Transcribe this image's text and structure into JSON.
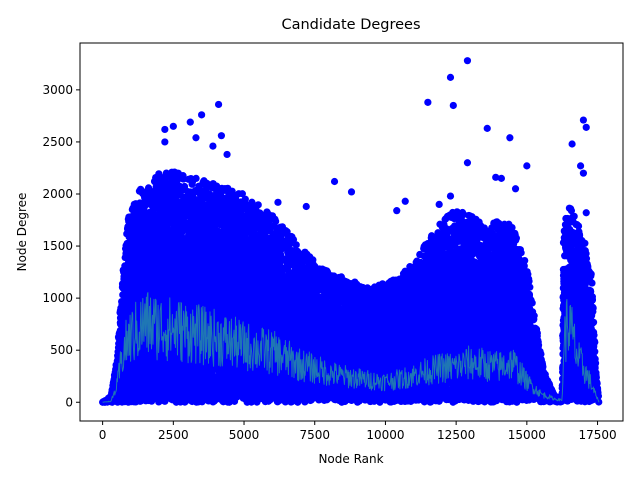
{
  "chart_data": {
    "type": "scatter",
    "title": "Candidate Degrees",
    "xlabel": "Node Rank",
    "ylabel": "Node Degree",
    "xlim": [
      -800,
      18400
    ],
    "ylim": [
      -180,
      3450
    ],
    "xticks": [
      0,
      2500,
      5000,
      7500,
      10000,
      12500,
      15000,
      17500
    ],
    "xtick_labels": [
      "0",
      "2500",
      "5000",
      "7500",
      "10000",
      "12500",
      "15000",
      "17500"
    ],
    "yticks": [
      0,
      500,
      1000,
      1500,
      2000,
      2500,
      3000
    ],
    "ytick_labels": [
      "0",
      "500",
      "1000",
      "1500",
      "2000",
      "2500",
      "3000"
    ],
    "grid": false,
    "legend": "none",
    "colors": {
      "points": "#0000ff",
      "line": "#1f77b4"
    },
    "series": [
      {
        "type": "scatter",
        "marker": "circle",
        "envelope": [
          [
            0,
            0
          ],
          [
            300,
            60
          ],
          [
            500,
            400
          ],
          [
            700,
            1200
          ],
          [
            900,
            1800
          ],
          [
            1200,
            2000
          ],
          [
            1500,
            2100
          ],
          [
            2000,
            2200
          ],
          [
            2500,
            2250
          ],
          [
            3000,
            2150
          ],
          [
            3500,
            2150
          ],
          [
            4000,
            2100
          ],
          [
            4500,
            2050
          ],
          [
            5000,
            2000
          ],
          [
            5500,
            1900
          ],
          [
            6000,
            1800
          ],
          [
            6500,
            1650
          ],
          [
            7000,
            1500
          ],
          [
            7500,
            1350
          ],
          [
            8000,
            1250
          ],
          [
            8500,
            1200
          ],
          [
            9000,
            1150
          ],
          [
            9500,
            1100
          ],
          [
            10000,
            1150
          ],
          [
            10500,
            1200
          ],
          [
            11000,
            1350
          ],
          [
            11500,
            1550
          ],
          [
            12000,
            1750
          ],
          [
            12500,
            1850
          ],
          [
            13000,
            1800
          ],
          [
            13500,
            1700
          ],
          [
            14000,
            1750
          ],
          [
            14500,
            1700
          ],
          [
            15000,
            1300
          ],
          [
            15300,
            800
          ],
          [
            15600,
            300
          ],
          [
            16000,
            50
          ],
          [
            16250,
            50
          ],
          [
            16300,
            1700
          ],
          [
            16500,
            1900
          ],
          [
            17000,
            1600
          ],
          [
            17300,
            1200
          ],
          [
            17450,
            300
          ],
          [
            17550,
            0
          ]
        ],
        "outliers": [
          [
            2200,
            2620
          ],
          [
            2500,
            2650
          ],
          [
            3100,
            2690
          ],
          [
            3300,
            2540
          ],
          [
            3500,
            2760
          ],
          [
            4100,
            2860
          ],
          [
            4200,
            2560
          ],
          [
            3900,
            2460
          ],
          [
            2200,
            2500
          ],
          [
            4400,
            2380
          ],
          [
            8200,
            2120
          ],
          [
            8800,
            2020
          ],
          [
            11500,
            2880
          ],
          [
            12300,
            3120
          ],
          [
            12400,
            2850
          ],
          [
            12900,
            3280
          ],
          [
            12900,
            2300
          ],
          [
            13600,
            2630
          ],
          [
            14400,
            2540
          ],
          [
            15000,
            2270
          ],
          [
            16600,
            2480
          ],
          [
            16900,
            2270
          ],
          [
            17000,
            2710
          ],
          [
            17100,
            2640
          ],
          [
            17000,
            2200
          ],
          [
            6200,
            1920
          ],
          [
            7200,
            1880
          ],
          [
            10700,
            1930
          ],
          [
            10400,
            1840
          ],
          [
            11900,
            1900
          ],
          [
            12300,
            1980
          ],
          [
            14600,
            2050
          ],
          [
            17100,
            1820
          ],
          [
            13900,
            2160
          ],
          [
            14100,
            2150
          ]
        ]
      },
      {
        "type": "line",
        "profile": [
          [
            0,
            0
          ],
          [
            300,
            10
          ],
          [
            500,
            150
          ],
          [
            700,
            450
          ],
          [
            900,
            600
          ],
          [
            1200,
            680
          ],
          [
            1500,
            760
          ],
          [
            2000,
            720
          ],
          [
            2500,
            700
          ],
          [
            3000,
            680
          ],
          [
            3500,
            640
          ],
          [
            4000,
            620
          ],
          [
            4500,
            580
          ],
          [
            5000,
            540
          ],
          [
            5500,
            510
          ],
          [
            6000,
            480
          ],
          [
            6500,
            420
          ],
          [
            7000,
            360
          ],
          [
            7500,
            320
          ],
          [
            8000,
            280
          ],
          [
            8500,
            250
          ],
          [
            9000,
            230
          ],
          [
            9500,
            210
          ],
          [
            10000,
            200
          ],
          [
            10500,
            220
          ],
          [
            11000,
            260
          ],
          [
            11500,
            300
          ],
          [
            12000,
            330
          ],
          [
            12500,
            340
          ],
          [
            13000,
            380
          ],
          [
            13500,
            360
          ],
          [
            14000,
            340
          ],
          [
            14500,
            380
          ],
          [
            15000,
            200
          ],
          [
            15500,
            80
          ],
          [
            16000,
            30
          ],
          [
            16250,
            20
          ],
          [
            16300,
            550
          ],
          [
            16450,
            780
          ],
          [
            16600,
            650
          ],
          [
            16800,
            420
          ],
          [
            17000,
            330
          ],
          [
            17200,
            220
          ],
          [
            17450,
            60
          ],
          [
            17550,
            0
          ]
        ]
      }
    ]
  }
}
